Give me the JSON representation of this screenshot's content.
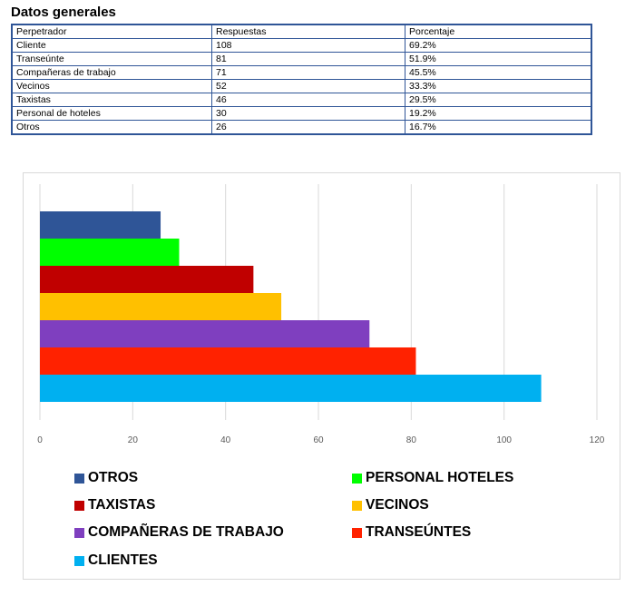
{
  "heading": "Datos generales",
  "table": {
    "headers": [
      "Perpetrador",
      "Respuestas",
      "Porcentaje"
    ],
    "rows": [
      [
        "Cliente",
        "108",
        "69.2%"
      ],
      [
        "Transeúnte",
        "81",
        "51.9%"
      ],
      [
        "Compañeras de trabajo",
        "71",
        "45.5%"
      ],
      [
        "Vecinos",
        "52",
        "33.3%"
      ],
      [
        "Taxistas",
        "46",
        "29.5%"
      ],
      [
        "Personal de hoteles",
        "30",
        "19.2%"
      ],
      [
        "Otros",
        "26",
        "16.7%"
      ]
    ]
  },
  "chart_data": {
    "type": "bar",
    "orientation": "horizontal",
    "categories": [
      "OTROS",
      "PERSONAL HOTELES",
      "TAXISTAS",
      "VECINOS",
      "COMPAÑERAS DE TRABAJO",
      "TRANSEÚNTES",
      "CLIENTES"
    ],
    "values": [
      26,
      30,
      46,
      52,
      71,
      81,
      108
    ],
    "colors": [
      "#2f5597",
      "#00ff00",
      "#c00000",
      "#ffc000",
      "#7f3fbf",
      "#ff2200",
      "#00b0f0"
    ],
    "xlim": [
      0,
      120
    ],
    "ticks": [
      "0",
      "20",
      "40",
      "60",
      "80",
      "100",
      "120"
    ],
    "grid": true,
    "legend_position": "bottom"
  }
}
